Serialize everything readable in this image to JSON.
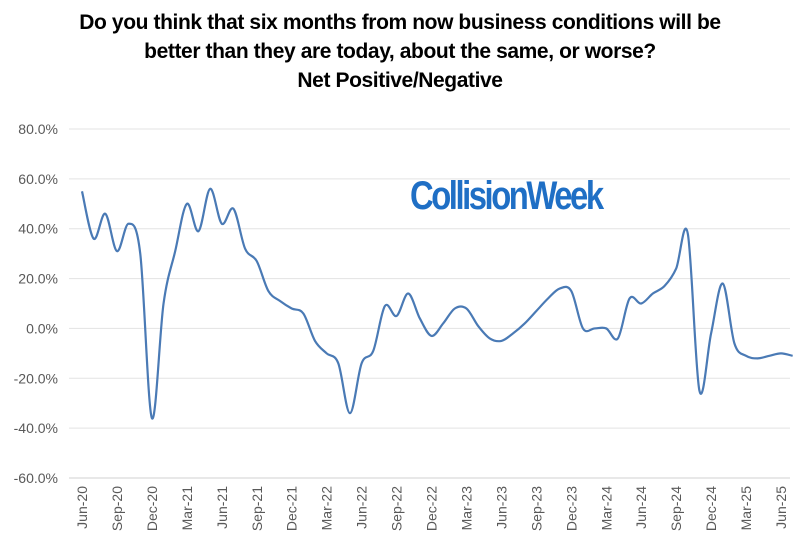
{
  "chart_data": {
    "type": "line",
    "title_lines": [
      "Do you think that six months from now business conditions will be",
      "better than they are today, about the same, or worse?",
      "Net Positive/Negative"
    ],
    "xlabel": "",
    "ylabel": "",
    "ylim": [
      -60,
      80
    ],
    "y_ticks": [
      "80.0%",
      "60.0%",
      "40.0%",
      "20.0%",
      "0.0%",
      "-20.0%",
      "-40.0%",
      "-60.0%"
    ],
    "x_tick_labels": [
      "Jun-20",
      "Sep-20",
      "Dec-20",
      "Mar-21",
      "Jun-21",
      "Sep-21",
      "Dec-21",
      "Mar-22",
      "Jun-22",
      "Sep-22",
      "Dec-22",
      "Mar-23",
      "Jun-23",
      "Sep-23",
      "Dec-23",
      "Mar-24",
      "Jun-24",
      "Sep-24",
      "Dec-24",
      "Mar-25",
      "Jun-25"
    ],
    "grid": true,
    "line_color": "#4a7ab5",
    "series": [
      {
        "name": "",
        "x": [
          "Jun-20",
          "Jul-20",
          "Aug-20",
          "Sep-20",
          "Oct-20",
          "Nov-20",
          "Dec-20",
          "Jan-21",
          "Feb-21",
          "Mar-21",
          "Apr-21",
          "May-21",
          "Jun-21",
          "Jul-21",
          "Aug-21",
          "Sep-21",
          "Oct-21",
          "Nov-21",
          "Dec-21",
          "Jan-22",
          "Feb-22",
          "Mar-22",
          "Apr-22",
          "May-22",
          "Jun-22",
          "Jul-22",
          "Aug-22",
          "Sep-22",
          "Oct-22",
          "Nov-22",
          "Dec-22",
          "Jan-23",
          "Feb-23",
          "Mar-23",
          "Apr-23",
          "May-23",
          "Jun-23",
          "Jul-23",
          "Aug-23",
          "Sep-23",
          "Oct-23",
          "Nov-23",
          "Dec-23",
          "Jan-24",
          "Feb-24",
          "Mar-24",
          "Apr-24",
          "May-24",
          "Jun-24",
          "Jul-24",
          "Aug-24",
          "Sep-24",
          "Oct-24",
          "Nov-24",
          "Dec-24",
          "Jan-25",
          "Feb-25",
          "Mar-25",
          "Apr-25",
          "May-25",
          "Jun-25",
          "Jul-25"
        ],
        "values": [
          55,
          36,
          46,
          31,
          42,
          30,
          -36,
          10,
          31,
          50,
          39,
          56,
          42,
          48,
          32,
          27,
          15,
          11,
          8,
          6,
          -5,
          -10,
          -14,
          -34,
          -14,
          -9,
          9,
          5,
          14,
          4,
          -3,
          2,
          8,
          8,
          1,
          -4,
          -5,
          -2,
          2,
          7,
          12,
          16,
          15,
          0,
          0,
          0,
          -4,
          12,
          10,
          14,
          17,
          24,
          38,
          -25,
          -2,
          18,
          -6,
          -11,
          -12,
          -11,
          -10,
          -11
        ]
      }
    ]
  },
  "watermark_text": "CollisionWeek"
}
